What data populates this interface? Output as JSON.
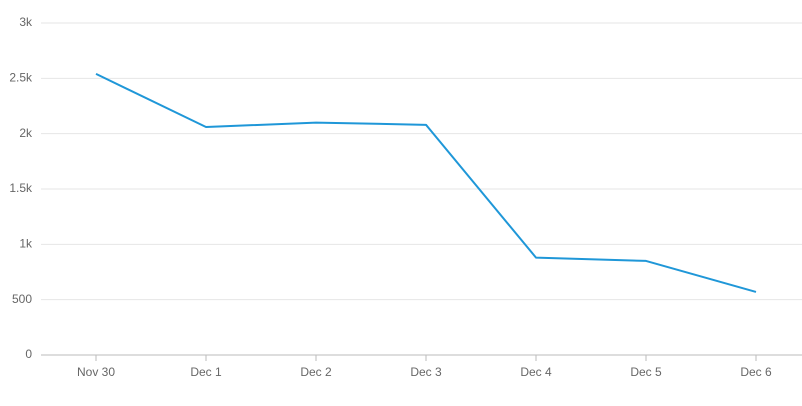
{
  "chart_data": {
    "type": "line",
    "categories": [
      "Nov 30",
      "Dec 1",
      "Dec 2",
      "Dec 3",
      "Dec 4",
      "Dec 5",
      "Dec 6"
    ],
    "series": [
      {
        "color": "#1f97d8",
        "values": [
          2540,
          2060,
          2100,
          2080,
          880,
          850,
          570
        ]
      }
    ],
    "ylim": [
      0,
      3000
    ],
    "yticks": [
      0,
      500,
      {
        "value": 1000,
        "label": "1k"
      },
      {
        "value": 1500,
        "label": "1.5k"
      },
      {
        "value": 2000,
        "label": "2k"
      },
      {
        "value": 2500,
        "label": "2.5k"
      },
      {
        "value": 3000,
        "label": "3k"
      }
    ],
    "grid": true
  }
}
